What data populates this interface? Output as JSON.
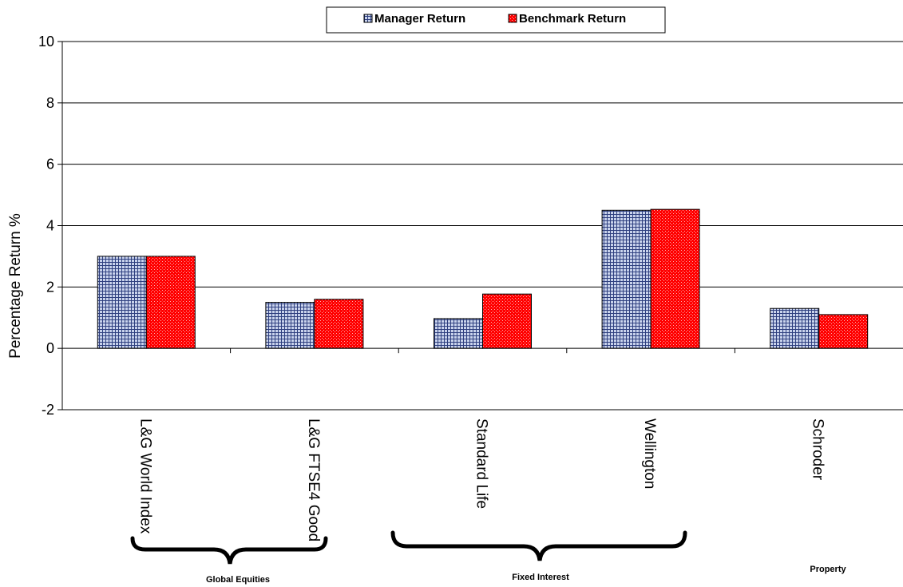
{
  "chart_data": {
    "type": "bar",
    "categories": [
      "L&G World Index",
      "L&G FTSE4 Good",
      "Standard Life",
      "Wellington",
      "Schroder"
    ],
    "series": [
      {
        "name": "Manager Return",
        "values": [
          3.0,
          1.5,
          0.97,
          4.5,
          1.3
        ],
        "color": "#2e3f7f",
        "pattern": "grid"
      },
      {
        "name": "Benchmark Return",
        "values": [
          3.0,
          1.6,
          1.77,
          4.53,
          1.1
        ],
        "color": "#ff0000",
        "pattern": "dotted"
      }
    ],
    "ylabel": "Percentage Return %",
    "xlabel": "",
    "ylim": [
      -2,
      10
    ],
    "yticks": [
      -2,
      0,
      2,
      4,
      6,
      8,
      10
    ],
    "grid": true,
    "legend_position": "top-center",
    "groups": [
      {
        "label": "Global Equities",
        "categories": [
          "L&G World Index",
          "L&G FTSE4 Good"
        ]
      },
      {
        "label": "Fixed Interest",
        "categories": [
          "Standard Life",
          "Wellington"
        ]
      },
      {
        "label": "Property",
        "categories": [
          "Schroder"
        ]
      }
    ]
  }
}
